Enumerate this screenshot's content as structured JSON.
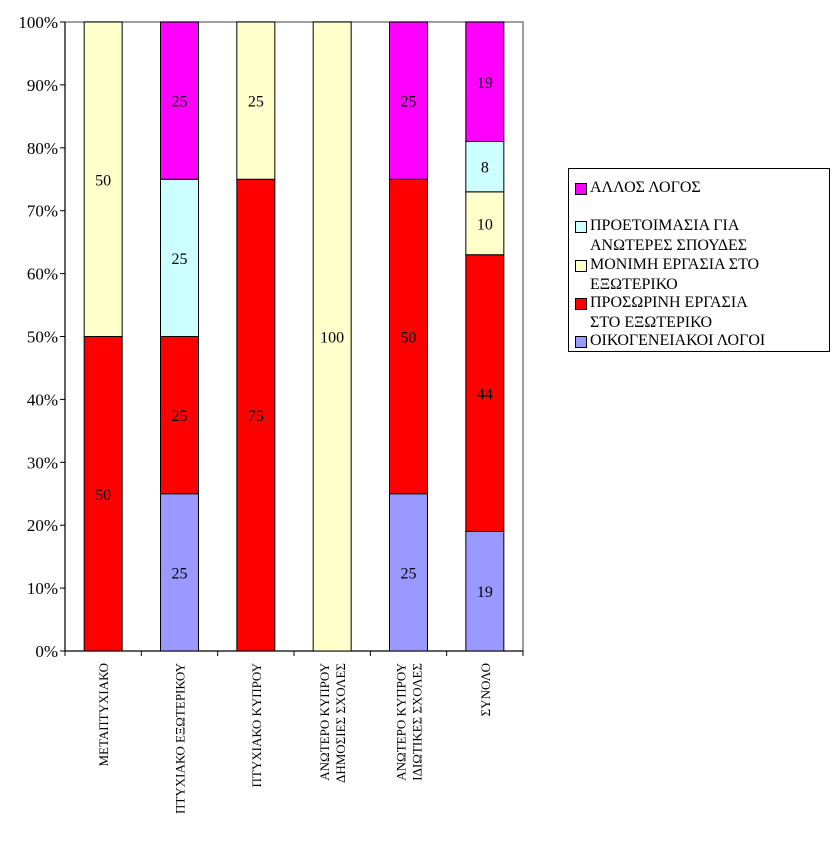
{
  "chart_data": {
    "type": "bar",
    "stacked": true,
    "percent": true,
    "ylim": [
      0,
      100
    ],
    "y_ticks": [
      "0%",
      "10%",
      "20%",
      "30%",
      "40%",
      "50%",
      "60%",
      "70%",
      "80%",
      "90%",
      "100%"
    ],
    "categories": [
      "ΜΕΤΑΠΤΥΧΙΑΚΟ",
      "ΠΤΥΧΙΑΚΟ ΕΞΩΤΕΡΙΚΟΥ",
      "ΠΤΥΧΙΑΚΟ ΚΥΠΡΟΥ",
      "ΑΝΩΤΕΡΟ ΚΥΠΡΟΥ ΔΗΜΟΣΙΕΣ ΣΧΟΛΕΣ",
      "ΑΝΩΤΕΡΟ ΚΥΠΡΟΥ ΙΔΙΩΤΙΚΕΣ ΣΧΟΛΕΣ",
      "ΣΥΝΟΛΟ"
    ],
    "category_lines": [
      [
        "ΜΕΤΑΠΤΥΧΙΑΚΟ"
      ],
      [
        "ΠΤΥΧΙΑΚΟ ΕΞΩΤΕΡΙΚΟΥ"
      ],
      [
        "ΠΤΥΧΙΑΚΟ ΚΥΠΡΟΥ"
      ],
      [
        "ΑΝΩΤΕΡΟ ΚΥΠΡΟΥ",
        "ΔΗΜΟΣΙΕΣ ΣΧΟΛΕΣ"
      ],
      [
        "ΑΝΩΤΕΡΟ ΚΥΠΡΟΥ",
        "ΙΔΙΩΤΙΚΕΣ ΣΧΟΛΕΣ"
      ],
      [
        "ΣΥΝΟΛΟ"
      ]
    ],
    "series": [
      {
        "name": "ΟΙΚΟΓΕΝΕΙΑΚΟΙ ΛΟΓΟΙ",
        "color": "#9999ff",
        "values": [
          0,
          25,
          0,
          0,
          25,
          19
        ]
      },
      {
        "name": "ΠΡΟΣΩΡΙΝΗ ΕΡΓΑΣΙΑ ΣΤΟ ΕΞΩΤΕΡΙΚΟ",
        "color": "#ff0000",
        "values": [
          50,
          25,
          75,
          0,
          50,
          44
        ]
      },
      {
        "name": "ΜΟΝΙΜΗ ΕΡΓΑΣΙΑ ΣΤΟ ΕΞΩΤΕΡΙΚΟ",
        "color": "#ffffcc",
        "values": [
          50,
          0,
          25,
          100,
          0,
          10
        ]
      },
      {
        "name": "ΠΡΟΕΤΟΙΜΑΣΙΑ ΓΙΑ ΑΝΩΤΕΡΕΣ ΣΠΟΥΔΕΣ",
        "color": "#ccffff",
        "values": [
          0,
          25,
          0,
          0,
          0,
          8
        ]
      },
      {
        "name": "ΑΛΛΟΣ ΛΟΓΟΣ",
        "color": "#ff00ff",
        "values": [
          0,
          25,
          0,
          0,
          25,
          19
        ]
      }
    ],
    "legend": {
      "position": "right",
      "order": [
        4,
        3,
        2,
        1,
        0
      ],
      "label_lines": [
        [
          "ΑΛΛΟΣ ΛΟΓΟΣ"
        ],
        [
          "ΠΡΟΕΤΟΙΜΑΣΙΑ ΓΙΑ",
          "ΑΝΩΤΕΡΕΣ ΣΠΟΥΔΕΣ"
        ],
        [
          "ΜΟΝΙΜΗ ΕΡΓΑΣΙΑ ΣΤΟ",
          "ΕΞΩΤΕΡΙΚΟ"
        ],
        [
          "ΠΡΟΣΩΡΙΝΗ ΕΡΓΑΣΙΑ",
          "ΣΤΟ ΕΞΩΤΕΡΙΚΟ"
        ],
        [
          "ΟΙΚΟΓΕΝΕΙΑΚΟΙ ΛΟΓΟΙ"
        ]
      ]
    },
    "data_labels": true,
    "grid": false
  }
}
